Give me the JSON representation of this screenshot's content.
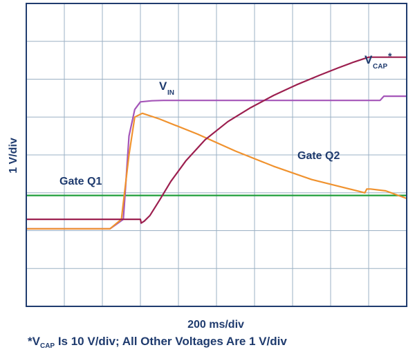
{
  "chart_data": {
    "type": "line",
    "xlabel": "200 ms/div",
    "ylabel": "1 V/div",
    "grid": true,
    "x_divisions": 10,
    "y_divisions": 8,
    "xlim": [
      0,
      10
    ],
    "ylim": [
      0,
      8
    ],
    "series": [
      {
        "name": "Gate Q1",
        "color": "#1f9e3a",
        "x": [
          0,
          10
        ],
        "y": [
          2.93,
          2.93
        ]
      },
      {
        "name": "V_IN",
        "color": "#a455b8",
        "x": [
          0,
          2.2,
          2.55,
          2.6,
          2.7,
          2.85,
          3.0,
          3.3,
          3.6,
          4.5,
          6.0,
          7.5,
          9.0,
          9.3,
          9.4,
          10.0
        ],
        "y": [
          2.05,
          2.05,
          2.3,
          3.0,
          4.5,
          5.2,
          5.4,
          5.43,
          5.44,
          5.44,
          5.44,
          5.44,
          5.44,
          5.44,
          5.55,
          5.55
        ]
      },
      {
        "name": "Gate Q2",
        "color": "#f0922e",
        "x": [
          0,
          2.2,
          2.5,
          2.7,
          2.85,
          3.05,
          3.5,
          4.5,
          5.5,
          6.5,
          7.5,
          8.5,
          8.9,
          8.95,
          9.05,
          9.45,
          10.0
        ],
        "y": [
          2.05,
          2.05,
          2.3,
          4.0,
          5.0,
          5.1,
          4.95,
          4.55,
          4.1,
          3.7,
          3.35,
          3.1,
          3.0,
          3.1,
          3.1,
          3.05,
          2.85
        ]
      },
      {
        "name": "V_CAP*",
        "color": "#9c1f4f",
        "x": [
          0,
          3.0,
          3.02,
          3.1,
          3.25,
          3.5,
          3.8,
          4.2,
          4.7,
          5.3,
          5.9,
          6.5,
          7.1,
          7.7,
          8.2,
          8.6,
          8.9,
          9.0,
          10.0
        ],
        "y": [
          2.3,
          2.3,
          2.2,
          2.25,
          2.4,
          2.8,
          3.3,
          3.85,
          4.4,
          4.88,
          5.25,
          5.57,
          5.85,
          6.1,
          6.3,
          6.45,
          6.55,
          6.58,
          6.58
        ]
      }
    ],
    "annotations": {
      "gate_q1": "Gate Q1",
      "v_in_main": "V",
      "v_in_sub": "IN",
      "gate_q2": "Gate Q2",
      "v_cap_main": "V",
      "v_cap_sub": "CAP",
      "v_cap_star": "*"
    }
  },
  "footnote": {
    "prefix": "*V",
    "sub": "CAP",
    "text": " Is 10 V/div; All Other Voltages Are 1 V/div"
  }
}
